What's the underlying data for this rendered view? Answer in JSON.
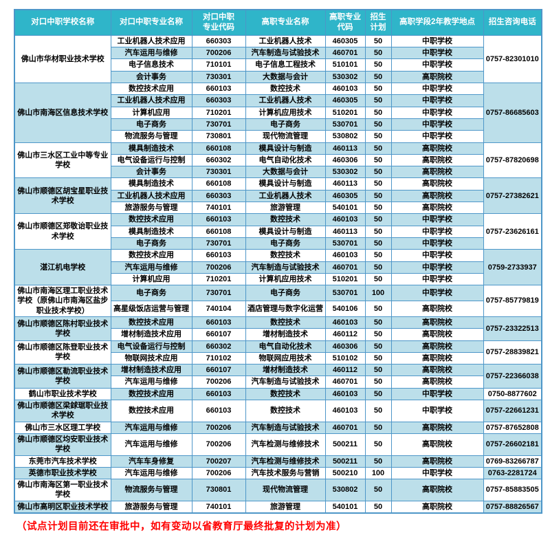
{
  "colors": {
    "header_bg": "#2FB5C9",
    "row_stripe": "#BCDFEA",
    "table_border": "#4D96C8",
    "note_text": "#FF0000"
  },
  "table": {
    "columns": [
      "对口中职学校名称",
      "对口中职专业名称",
      "对口中职\n专业代码",
      "高职专业名称",
      "高职专业\n代码",
      "招生\n计划",
      "高职学段2年教学地点",
      "招生咨询电话"
    ]
  },
  "schools": [
    {
      "name": "佛山市华材职业技术学校",
      "phone": "0757-82301010",
      "rows": [
        {
          "secondary_major": "工业机器人技术应用",
          "secondary_code": "660303",
          "higher_major": "工业机器人技术",
          "higher_code": "460305",
          "plan": "50",
          "location": "中职学校"
        },
        {
          "secondary_major": "汽车运用与维修",
          "secondary_code": "700206",
          "higher_major": "汽车制造与试验技术",
          "higher_code": "460701",
          "plan": "50",
          "location": "中职学校"
        },
        {
          "secondary_major": "电子信息技术",
          "secondary_code": "710101",
          "higher_major": "电子信息工程技术",
          "higher_code": "510101",
          "plan": "50",
          "location": "中职学校"
        },
        {
          "secondary_major": "会计事务",
          "secondary_code": "730301",
          "higher_major": "大数据与会计",
          "higher_code": "530302",
          "plan": "50",
          "location": "高职院校"
        }
      ]
    },
    {
      "name": "佛山市南海区信息技术学校",
      "phone": "0757-86685603",
      "rows": [
        {
          "secondary_major": "数控技术应用",
          "secondary_code": "660103",
          "higher_major": "数控技术",
          "higher_code": "460103",
          "plan": "50",
          "location": "中职学校"
        },
        {
          "secondary_major": "工业机器人技术应用",
          "secondary_code": "660303",
          "higher_major": "工业机器人技术",
          "higher_code": "460305",
          "plan": "50",
          "location": "中职学校"
        },
        {
          "secondary_major": "计算机应用",
          "secondary_code": "710201",
          "higher_major": "计算机应用技术",
          "higher_code": "510201",
          "plan": "50",
          "location": "中职学校"
        },
        {
          "secondary_major": "电子商务",
          "secondary_code": "730701",
          "higher_major": "电子商务",
          "higher_code": "530701",
          "plan": "50",
          "location": "中职学校"
        },
        {
          "secondary_major": "物流服务与管理",
          "secondary_code": "730801",
          "higher_major": "现代物流管理",
          "higher_code": "530802",
          "plan": "50",
          "location": "中职学校"
        }
      ]
    },
    {
      "name": "佛山市三水区工业中等专业学校",
      "phone": "0757-87820698",
      "rows": [
        {
          "secondary_major": "模具制造技术",
          "secondary_code": "660108",
          "higher_major": "模具设计与制造",
          "higher_code": "460113",
          "plan": "50",
          "location": "高职院校"
        },
        {
          "secondary_major": "电气设备运行与控制",
          "secondary_code": "660302",
          "higher_major": "电气自动化技术",
          "higher_code": "460306",
          "plan": "50",
          "location": "高职院校"
        },
        {
          "secondary_major": "会计事务",
          "secondary_code": "730301",
          "higher_major": "大数据与会计",
          "higher_code": "530302",
          "plan": "50",
          "location": "高职院校"
        }
      ]
    },
    {
      "name": "佛山市顺德区胡宝星职业技术学校",
      "phone": "0757-27382621",
      "rows": [
        {
          "secondary_major": "模具制造技术",
          "secondary_code": "660108",
          "higher_major": "模具设计与制造",
          "higher_code": "460113",
          "plan": "50",
          "location": "高职院校"
        },
        {
          "secondary_major": "工业机器人技术应用",
          "secondary_code": "660303",
          "higher_major": "工业机器人技术",
          "higher_code": "460305",
          "plan": "50",
          "location": "高职院校"
        },
        {
          "secondary_major": "旅游服务与管理",
          "secondary_code": "740101",
          "higher_major": "旅游管理",
          "higher_code": "540101",
          "plan": "50",
          "location": "高职院校"
        }
      ]
    },
    {
      "name": "佛山市顺德区郑敬诒职业技术学校",
      "phone": "0757-23626161",
      "rows": [
        {
          "secondary_major": "数控技术应用",
          "secondary_code": "660103",
          "higher_major": "数控技术",
          "higher_code": "460103",
          "plan": "50",
          "location": "中职学校"
        },
        {
          "secondary_major": "模具制造技术",
          "secondary_code": "660108",
          "higher_major": "模具设计与制造",
          "higher_code": "460113",
          "plan": "50",
          "location": "中职学校"
        },
        {
          "secondary_major": "电子商务",
          "secondary_code": "730701",
          "higher_major": "电子商务",
          "higher_code": "530701",
          "plan": "50",
          "location": "中职学校"
        }
      ]
    },
    {
      "name": "湛江机电学校",
      "phone": "0759-2733937",
      "rows": [
        {
          "secondary_major": "数控技术应用",
          "secondary_code": "660103",
          "higher_major": "数控技术",
          "higher_code": "460103",
          "plan": "50",
          "location": "中职学校"
        },
        {
          "secondary_major": "汽车运用与维修",
          "secondary_code": "700206",
          "higher_major": "汽车制造与试验技术",
          "higher_code": "460701",
          "plan": "50",
          "location": "中职学校"
        },
        {
          "secondary_major": "计算机应用",
          "secondary_code": "710201",
          "higher_major": "计算机应用技术",
          "higher_code": "510201",
          "plan": "50",
          "location": "中职学校"
        }
      ]
    },
    {
      "name": "佛山市南海区理工职业技术学校（原佛山市南海区盐步职业技术学校）",
      "phone": "0757-85779819",
      "rows": [
        {
          "secondary_major": "电子商务",
          "secondary_code": "730701",
          "higher_major": "电子商务",
          "higher_code": "530701",
          "plan": "100",
          "location": "中职学校"
        },
        {
          "secondary_major": "高星级饭店运营与管理",
          "secondary_code": "740104",
          "higher_major": "酒店管理与数字化运营",
          "higher_code": "540106",
          "plan": "50",
          "location": "高职院校"
        }
      ]
    },
    {
      "name": "佛山市顺德区陈村职业技术学校",
      "phone": "0757-23322513",
      "rows": [
        {
          "secondary_major": "数控技术应用",
          "secondary_code": "660103",
          "higher_major": "数控技术",
          "higher_code": "460103",
          "plan": "50",
          "location": "高职院校"
        },
        {
          "secondary_major": "增材制造技术应用",
          "secondary_code": "660107",
          "higher_major": "增材制造技术",
          "higher_code": "460112",
          "plan": "50",
          "location": "高职院校"
        }
      ]
    },
    {
      "name": "佛山市顺德区陈登职业技术学校",
      "phone": "0757-28839821",
      "rows": [
        {
          "secondary_major": "电气设备运行与控制",
          "secondary_code": "660302",
          "higher_major": "电气自动化技术",
          "higher_code": "460306",
          "plan": "50",
          "location": "高职院校"
        },
        {
          "secondary_major": "物联网技术应用",
          "secondary_code": "710102",
          "higher_major": "物联网应用技术",
          "higher_code": "510102",
          "plan": "50",
          "location": "高职院校"
        }
      ]
    },
    {
      "name": "佛山市顺德区勒流职业技术学校",
      "phone": "0757-22366038",
      "rows": [
        {
          "secondary_major": "增材制造技术应用",
          "secondary_code": "660107",
          "higher_major": "增材制造技术",
          "higher_code": "460112",
          "plan": "50",
          "location": "高职院校"
        },
        {
          "secondary_major": "汽车运用与维修",
          "secondary_code": "700206",
          "higher_major": "汽车制造与试验技术",
          "higher_code": "460701",
          "plan": "50",
          "location": "高职院校"
        }
      ]
    },
    {
      "name": "鹤山市职业技术学校",
      "phone": "0750-8877602",
      "rows": [
        {
          "secondary_major": "数控技术应用",
          "secondary_code": "660103",
          "higher_major": "数控技术",
          "higher_code": "460103",
          "plan": "50",
          "location": "中职学校"
        }
      ]
    },
    {
      "name": "佛山市顺德区梁銶琚职业技术学校",
      "phone": "0757-22661231",
      "rows": [
        {
          "secondary_major": "数控技术应用",
          "secondary_code": "660103",
          "higher_major": "数控技术",
          "higher_code": "460103",
          "plan": "50",
          "location": "中职学校"
        }
      ]
    },
    {
      "name": "佛山市三水区理工学校",
      "phone": "0757-87652808",
      "rows": [
        {
          "secondary_major": "汽车运用与维修",
          "secondary_code": "700206",
          "higher_major": "汽车制造与试验技术",
          "higher_code": "460701",
          "plan": "50",
          "location": "高职院校"
        }
      ]
    },
    {
      "name": "佛山市顺德区均安职业技术学校",
      "phone": "0757-26602181",
      "rows": [
        {
          "secondary_major": "汽车运用与维修",
          "secondary_code": "700206",
          "higher_major": "汽车检测与维修技术",
          "higher_code": "500211",
          "plan": "50",
          "location": "高职院校"
        }
      ]
    },
    {
      "name": "东莞市汽车技术学校",
      "phone": "0769-83266787",
      "rows": [
        {
          "secondary_major": "汽车车身修复",
          "secondary_code": "700207",
          "higher_major": "汽车检测与维修技术",
          "higher_code": "500211",
          "plan": "50",
          "location": "高职院校"
        }
      ]
    },
    {
      "name": "英德市职业技术学校",
      "phone": "0763-2281724",
      "rows": [
        {
          "secondary_major": "汽车运用与维修",
          "secondary_code": "700206",
          "higher_major": "汽车技术服务与营销",
          "higher_code": "500210",
          "plan": "100",
          "location": "中职学校"
        }
      ]
    },
    {
      "name": "佛山市南海区第一职业技术学校",
      "phone": "0757-85883505",
      "rows": [
        {
          "secondary_major": "物流服务与管理",
          "secondary_code": "730801",
          "higher_major": "现代物流管理",
          "higher_code": "530802",
          "plan": "50",
          "location": "高职院校"
        }
      ]
    },
    {
      "name": "佛山市高明区职业技术学校",
      "phone": "0757-88826567",
      "rows": [
        {
          "secondary_major": "旅游服务与管理",
          "secondary_code": "740101",
          "higher_major": "旅游管理",
          "higher_code": "540101",
          "plan": "50",
          "location": "高职院校"
        }
      ]
    }
  ],
  "footnote": "（试点计划目前还在审批中，如有变动以省教育厅最终批复的计划为准）"
}
